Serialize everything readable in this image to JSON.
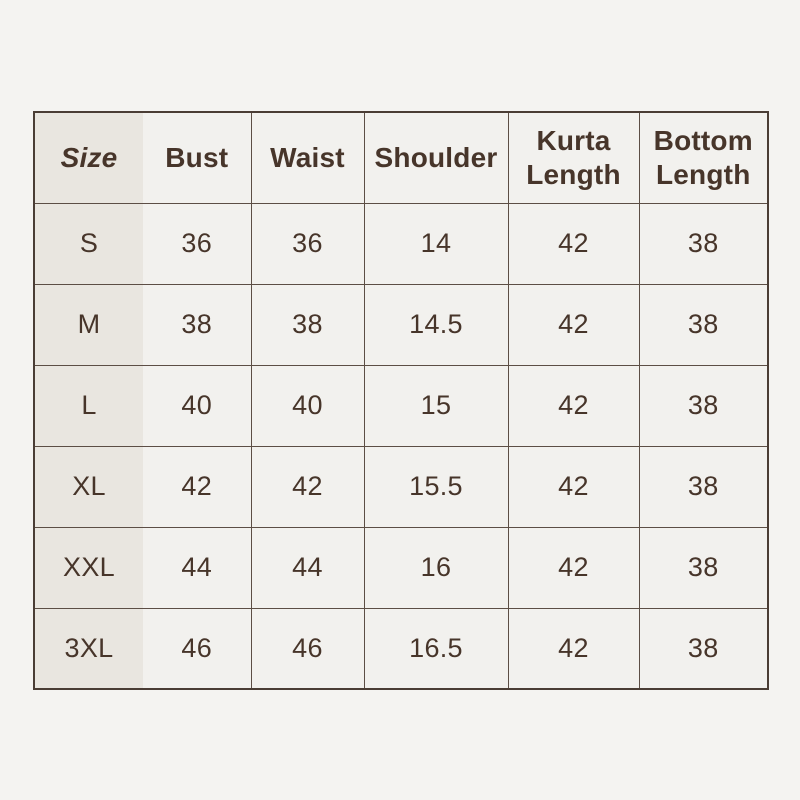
{
  "page": {
    "background_color": "#f4f3f1",
    "table_background_color": "#f2f1ee",
    "size_column_background_color": "#e9e6e0",
    "border_color": "#5c4e45",
    "outer_border_color": "#4a3d35",
    "text_color": "#47352a"
  },
  "chart_data": {
    "type": "table",
    "title": "",
    "columns": [
      "Size",
      "Bust",
      "Waist",
      "Shoulder",
      "Kurta Length",
      "Bottom Length"
    ],
    "rows": [
      {
        "size": "S",
        "bust": "36",
        "waist": "36",
        "shoulder": "14",
        "kurta_length": "42",
        "bottom_length": "38"
      },
      {
        "size": "M",
        "bust": "38",
        "waist": "38",
        "shoulder": "14.5",
        "kurta_length": "42",
        "bottom_length": "38"
      },
      {
        "size": "L",
        "bust": "40",
        "waist": "40",
        "shoulder": "15",
        "kurta_length": "42",
        "bottom_length": "38"
      },
      {
        "size": "XL",
        "bust": "42",
        "waist": "42",
        "shoulder": "15.5",
        "kurta_length": "42",
        "bottom_length": "38"
      },
      {
        "size": "XXL",
        "bust": "44",
        "waist": "44",
        "shoulder": "16",
        "kurta_length": "42",
        "bottom_length": "38"
      },
      {
        "size": "3XL",
        "bust": "46",
        "waist": "46",
        "shoulder": "16.5",
        "kurta_length": "42",
        "bottom_length": "38"
      }
    ]
  }
}
